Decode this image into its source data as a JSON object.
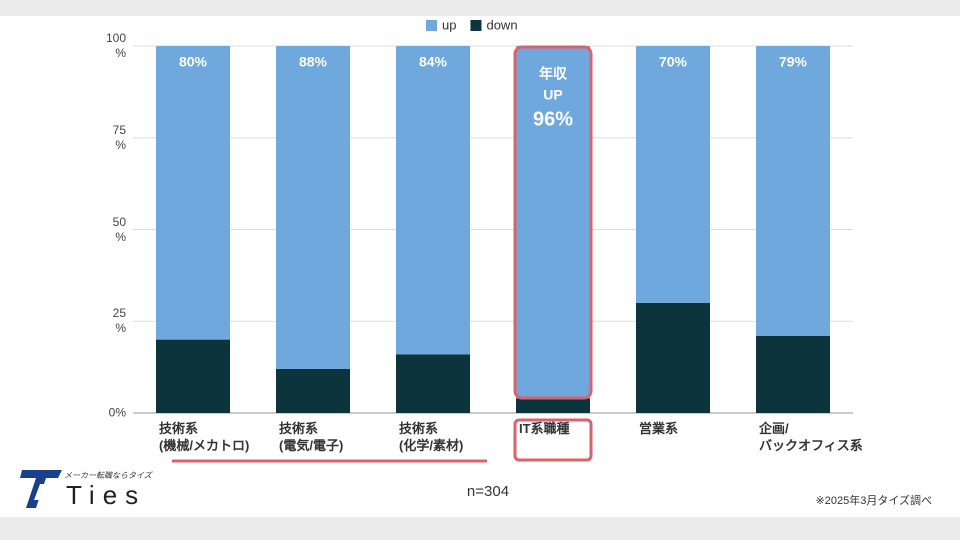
{
  "chart_data": {
    "type": "stacked_bar",
    "categories": [
      "技術系\n(機械/メカトロ)",
      "技術系\n(電気/電子)",
      "技術系\n(化学/素材)",
      "IT系職種",
      "営業系",
      "企画/\nバックオフィス系"
    ],
    "series": [
      {
        "name": "up",
        "color": "#6fa8dc",
        "values": [
          80,
          88,
          84,
          96,
          70,
          79
        ],
        "value_labels": [
          "80%",
          "88%",
          "84%",
          "96%",
          "70%",
          "79%"
        ]
      },
      {
        "name": "down",
        "color": "#0c343d",
        "values": [
          20,
          12,
          16,
          4,
          30,
          21
        ]
      }
    ],
    "ylim": [
      0,
      100
    ],
    "yticks": [
      {
        "value": 0,
        "label": "0%"
      },
      {
        "value": 25,
        "label": "25\n%"
      },
      {
        "value": 50,
        "label": "50\n%"
      },
      {
        "value": 75,
        "label": "75\n%"
      },
      {
        "value": 100,
        "label": "100\n%"
      }
    ],
    "grid": true,
    "legend": "top",
    "annotations": [
      "年収",
      "UP"
    ],
    "sample_size": "n=304",
    "source": "※2025年3月タイズ調べ"
  },
  "brand": {
    "name": "Ties",
    "tagline": "メーカー転職ならタイズ"
  }
}
